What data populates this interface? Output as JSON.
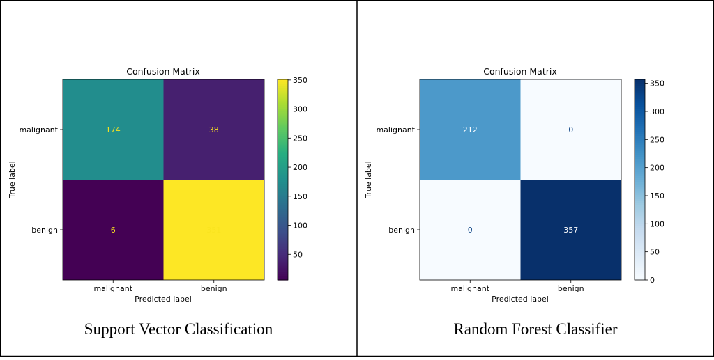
{
  "chart_data": [
    {
      "type": "heatmap",
      "title": "Confusion Matrix",
      "xlabel": "Predicted label",
      "ylabel": "True label",
      "x_categories": [
        "malignant",
        "benign"
      ],
      "y_categories": [
        "malignant",
        "benign"
      ],
      "matrix": [
        [
          174,
          38
        ],
        [
          6,
          351
        ]
      ],
      "colormap": "viridis",
      "colorbar_range": [
        6,
        351
      ],
      "colorbar_ticks": [
        50,
        100,
        150,
        200,
        250,
        300,
        350
      ],
      "caption": "Support Vector Classification"
    },
    {
      "type": "heatmap",
      "title": "Confusion Matrix",
      "xlabel": "Predicted label",
      "ylabel": "True label",
      "x_categories": [
        "malignant",
        "benign"
      ],
      "y_categories": [
        "malignant",
        "benign"
      ],
      "matrix": [
        [
          212,
          0
        ],
        [
          0,
          357
        ]
      ],
      "colormap": "blues",
      "colorbar_range": [
        0,
        357
      ],
      "colorbar_ticks": [
        0,
        50,
        100,
        150,
        200,
        250,
        300,
        350
      ],
      "caption": "Random Forest Classifier"
    }
  ],
  "colors": {
    "border": "#000000",
    "text_light": "#f9e41f",
    "text_dark_on_light": "#1a4e8c",
    "text_white": "#ffffff"
  }
}
